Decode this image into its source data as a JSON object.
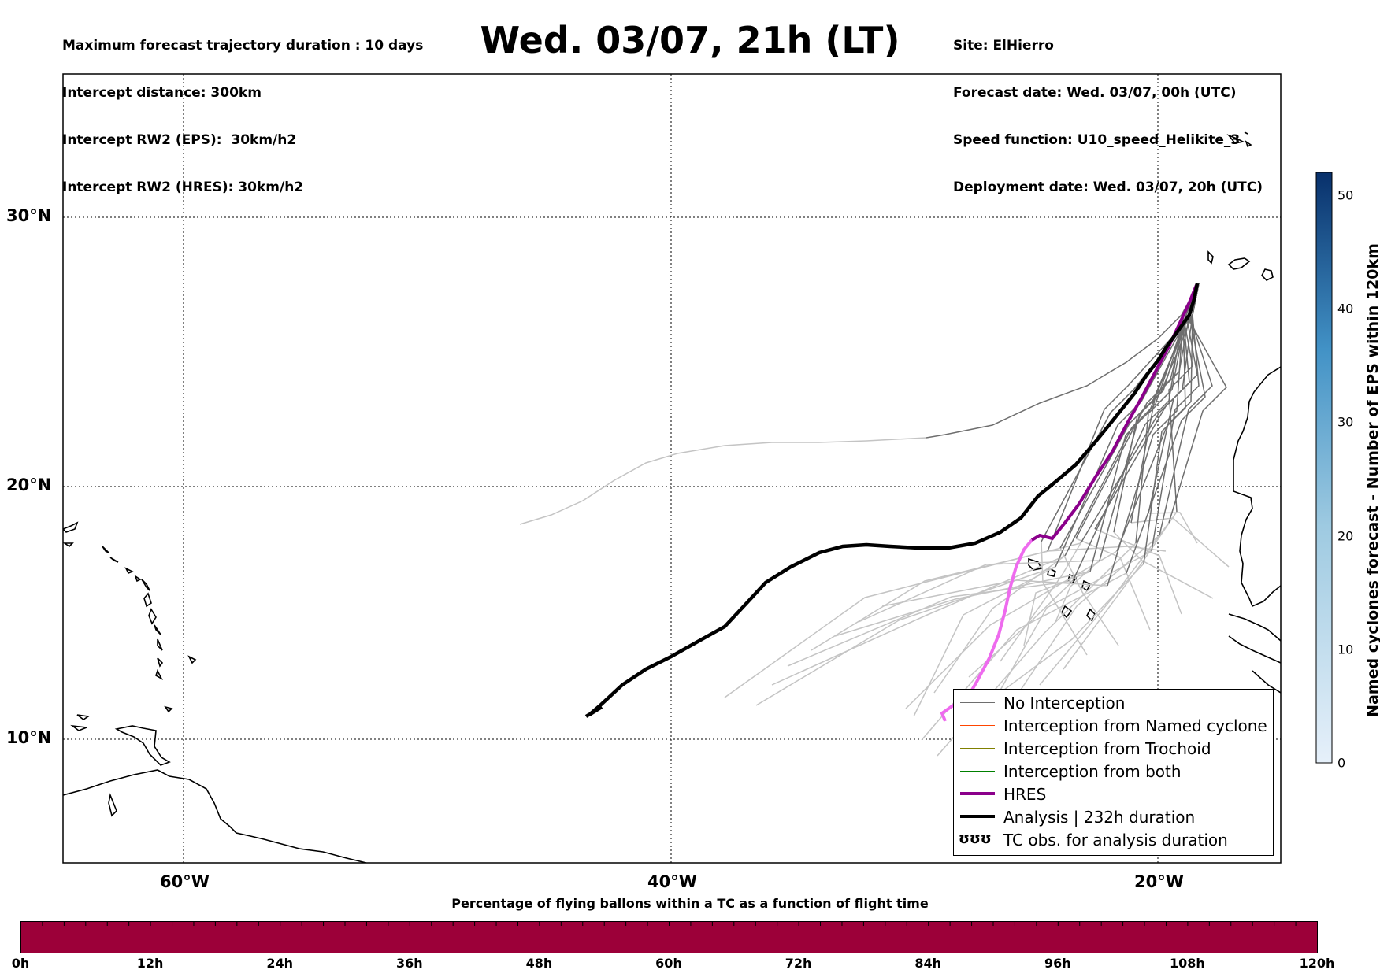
{
  "header": {
    "left_lines": [
      "Maximum forecast trajectory duration : 10 days",
      "Intercept distance: 300km",
      "Intercept RW2 (EPS):  30km/h2",
      "Intercept RW2 (HRES): 30km/h2"
    ],
    "title": "Wed. 03/07, 21h (LT)",
    "right_lines": [
      "Site: ElHierro",
      "Forecast date: Wed. 03/07, 00h (UTC)",
      "Speed function: U10_speed_Helikite_3",
      "Deployment date: Wed. 03/07, 20h (UTC)"
    ]
  },
  "map": {
    "lat_labels": [
      "30°N",
      "20°N",
      "10°N"
    ],
    "lon_labels": [
      "60°W",
      "40°W",
      "20°W"
    ],
    "grid": "dotted",
    "colors": {
      "no_interception": "#6e6e6e",
      "no_interception_faded": "#c4c4c4",
      "hres": "#8b008b",
      "hres_faded": "#ee6bee",
      "analysis": "#000000",
      "coastline": "#000000"
    }
  },
  "legend": {
    "items": [
      {
        "label": "No Interception",
        "color": "#6e6e6e",
        "style": "thin"
      },
      {
        "label": "Interception from Named cyclone",
        "color": "#ff4500",
        "style": "thin"
      },
      {
        "label": "Interception from Trochoid",
        "color": "#808000",
        "style": "thin"
      },
      {
        "label": "Interception from both",
        "color": "#008000",
        "style": "thin"
      },
      {
        "label": "HRES",
        "color": "#8b008b",
        "style": "thick"
      },
      {
        "label": "Analysis | 232h duration",
        "color": "#000000",
        "style": "thick"
      },
      {
        "label": "TC obs. for analysis duration",
        "color": "#000000",
        "style": "symbol",
        "symbol": "ʊʊʊ"
      }
    ]
  },
  "colorbar_bottom": {
    "title": "Percentage of flying ballons within a TC as a function of flight time",
    "ticks": [
      "0h",
      "12h",
      "24h",
      "36h",
      "48h",
      "60h",
      "72h",
      "84h",
      "96h",
      "108h",
      "120h"
    ],
    "fill_color": "#9c0039"
  },
  "colorbar_right": {
    "label": "Named cyclones forecast - Number of EPS within 120km",
    "ticks": [
      "0",
      "10",
      "20",
      "30",
      "40",
      "50"
    ],
    "range": [
      0,
      52
    ],
    "color_low": "#e6f0fa",
    "color_high": "#08306b"
  }
}
